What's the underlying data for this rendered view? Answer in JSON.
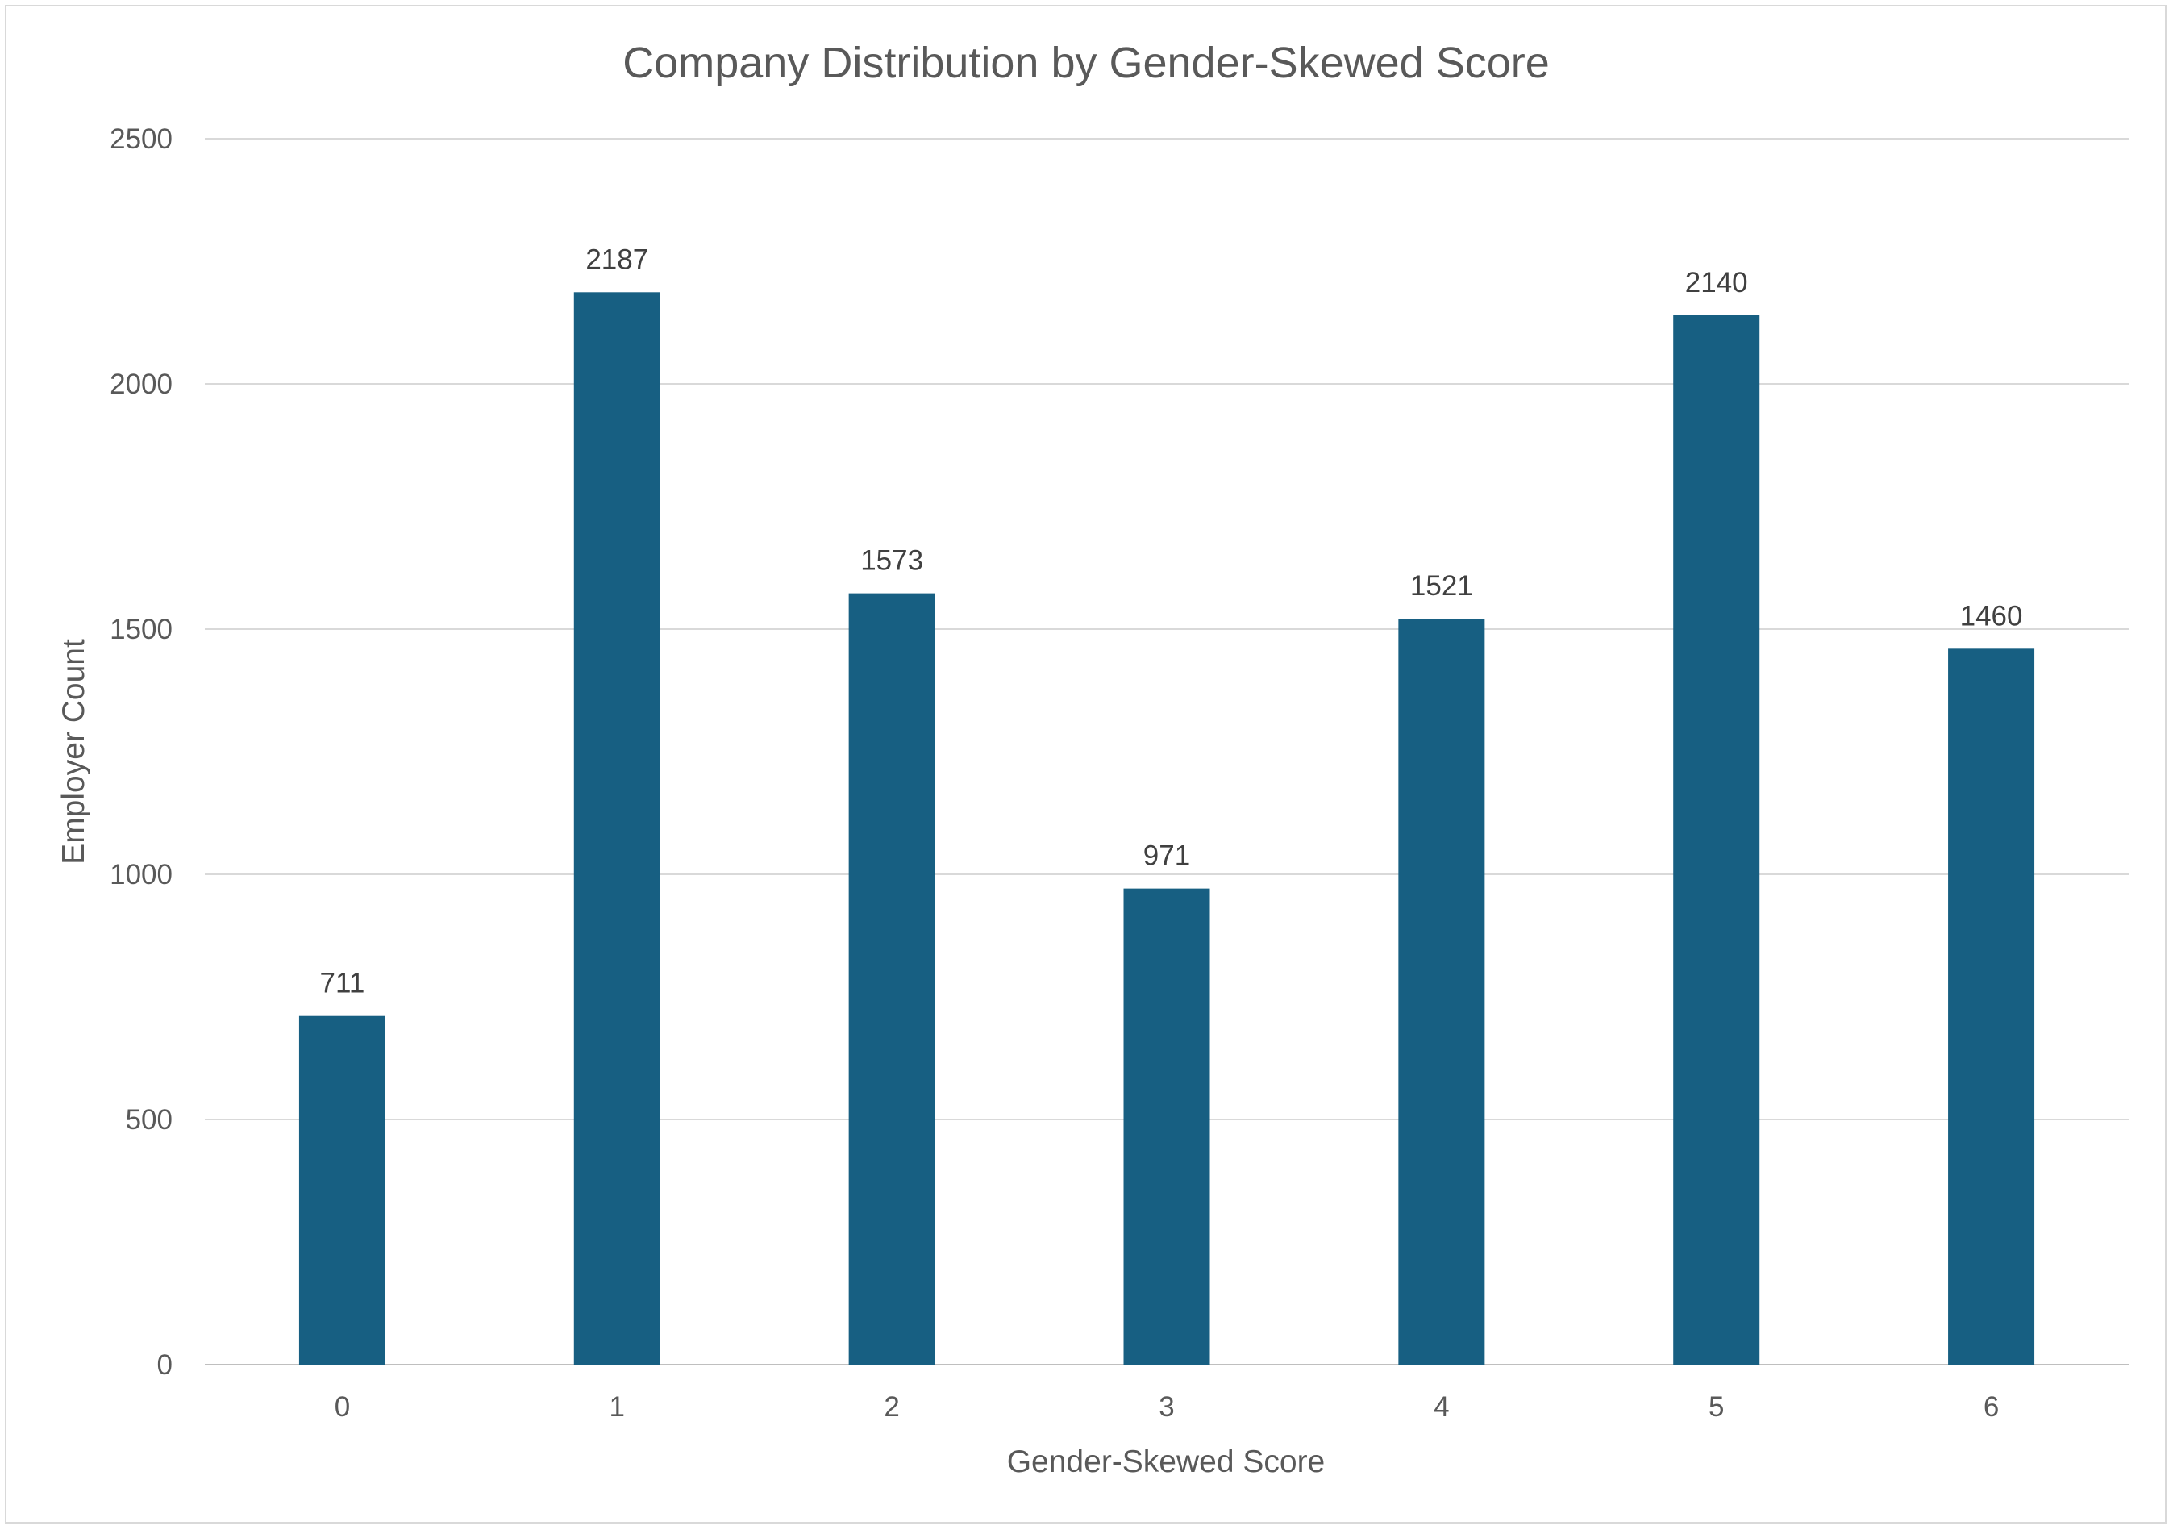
{
  "chart_data": {
    "type": "bar",
    "title": "Company Distribution by Gender-Skewed Score",
    "xlabel": "Gender-Skewed Score",
    "ylabel": "Employer Count",
    "categories": [
      "0",
      "1",
      "2",
      "3",
      "4",
      "5",
      "6"
    ],
    "values": [
      711,
      2187,
      1573,
      971,
      1521,
      2140,
      1460
    ],
    "ylim": [
      0,
      2500
    ],
    "yticks": [
      0,
      500,
      1000,
      1500,
      2000,
      2500
    ],
    "grid": true,
    "legend": "none",
    "data_labels": true,
    "bar_color": "#175f82"
  }
}
